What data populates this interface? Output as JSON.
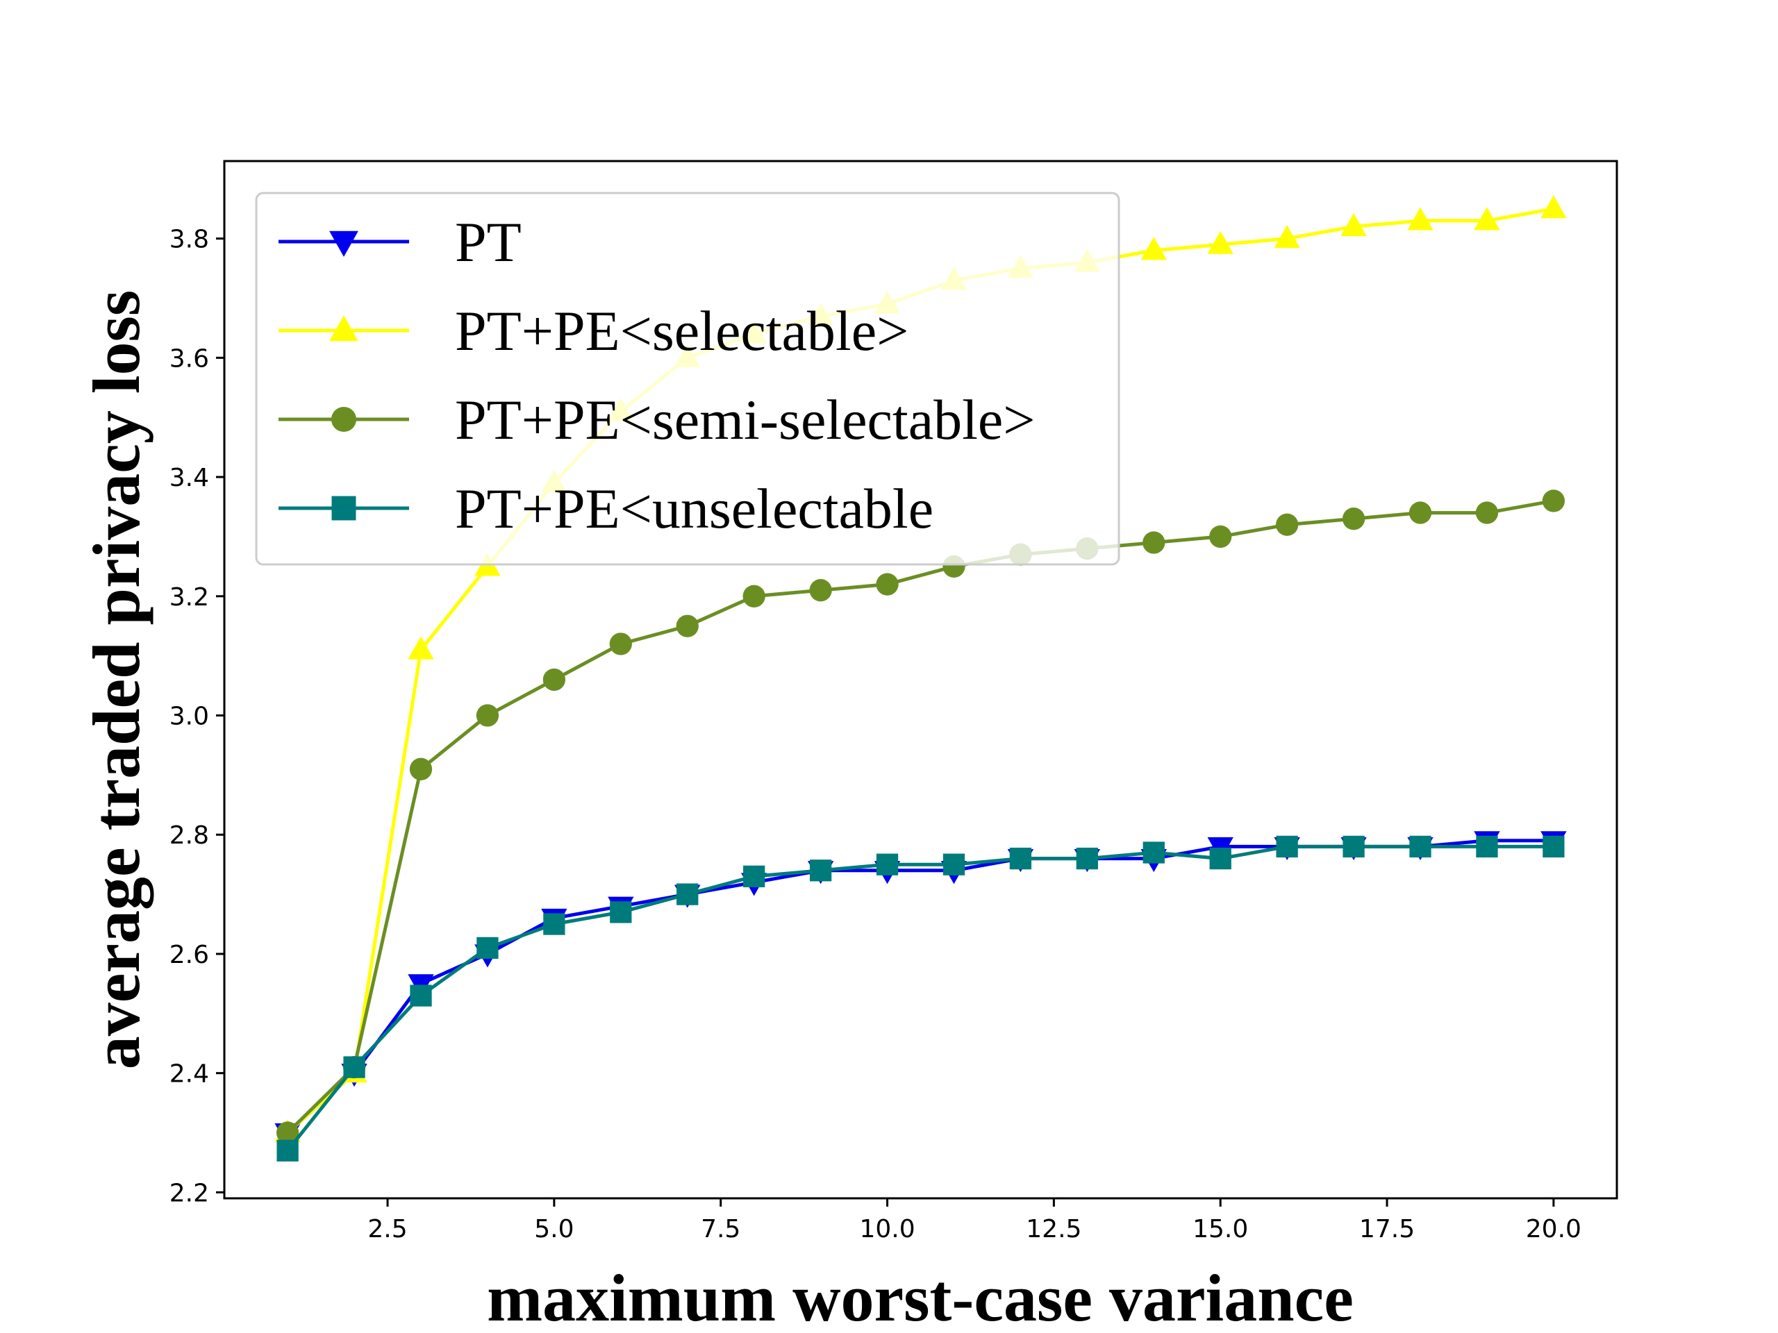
{
  "chart_data": {
    "type": "line",
    "title": "",
    "xlabel": "maximum worst-case variance",
    "ylabel": "average traded privacy loss",
    "xlim": [
      0.05,
      20.95
    ],
    "ylim": [
      2.19,
      3.93
    ],
    "xticks": [
      2.5,
      5.0,
      7.5,
      10.0,
      12.5,
      15.0,
      17.5,
      20.0
    ],
    "xtick_labels": [
      "2.5",
      "5.0",
      "7.5",
      "10.0",
      "12.5",
      "15.0",
      "17.5",
      "20.0"
    ],
    "yticks": [
      2.2,
      2.4,
      2.6,
      2.8,
      3.0,
      3.2,
      3.4,
      3.6,
      3.8
    ],
    "ytick_labels": [
      "2.2",
      "2.4",
      "2.6",
      "2.8",
      "3.0",
      "3.2",
      "3.4",
      "3.6",
      "3.8"
    ],
    "grid": false,
    "legend_position": "top-left",
    "x": [
      1,
      2,
      3,
      4,
      5,
      6,
      7,
      8,
      9,
      10,
      11,
      12,
      13,
      14,
      15,
      16,
      17,
      18,
      19,
      20
    ],
    "series": [
      {
        "name": "PT",
        "color": "#0000ee",
        "marker": "triangle-down",
        "values": [
          2.3,
          2.4,
          2.55,
          2.6,
          2.66,
          2.68,
          2.7,
          2.72,
          2.74,
          2.74,
          2.74,
          2.76,
          2.76,
          2.76,
          2.78,
          2.78,
          2.78,
          2.78,
          2.79,
          2.79
        ]
      },
      {
        "name": "PT+PE<selectable>",
        "color": "#ffff00",
        "marker": "triangle-up",
        "values": [
          2.3,
          2.4,
          3.11,
          3.25,
          3.39,
          3.51,
          3.6,
          3.64,
          3.67,
          3.69,
          3.73,
          3.75,
          3.76,
          3.78,
          3.79,
          3.8,
          3.82,
          3.83,
          3.83,
          3.85
        ]
      },
      {
        "name": "PT+PE<semi-selectable>",
        "color": "#6b8e23",
        "marker": "circle",
        "values": [
          2.3,
          2.41,
          2.91,
          3.0,
          3.06,
          3.12,
          3.15,
          3.2,
          3.21,
          3.22,
          3.25,
          3.27,
          3.28,
          3.29,
          3.3,
          3.32,
          3.33,
          3.34,
          3.34,
          3.36
        ]
      },
      {
        "name": "PT+PE<unselectable",
        "color": "#007b7b",
        "marker": "square",
        "values": [
          2.27,
          2.41,
          2.53,
          2.61,
          2.65,
          2.67,
          2.7,
          2.73,
          2.74,
          2.75,
          2.75,
          2.76,
          2.76,
          2.77,
          2.76,
          2.78,
          2.78,
          2.78,
          2.78,
          2.78
        ]
      }
    ]
  }
}
